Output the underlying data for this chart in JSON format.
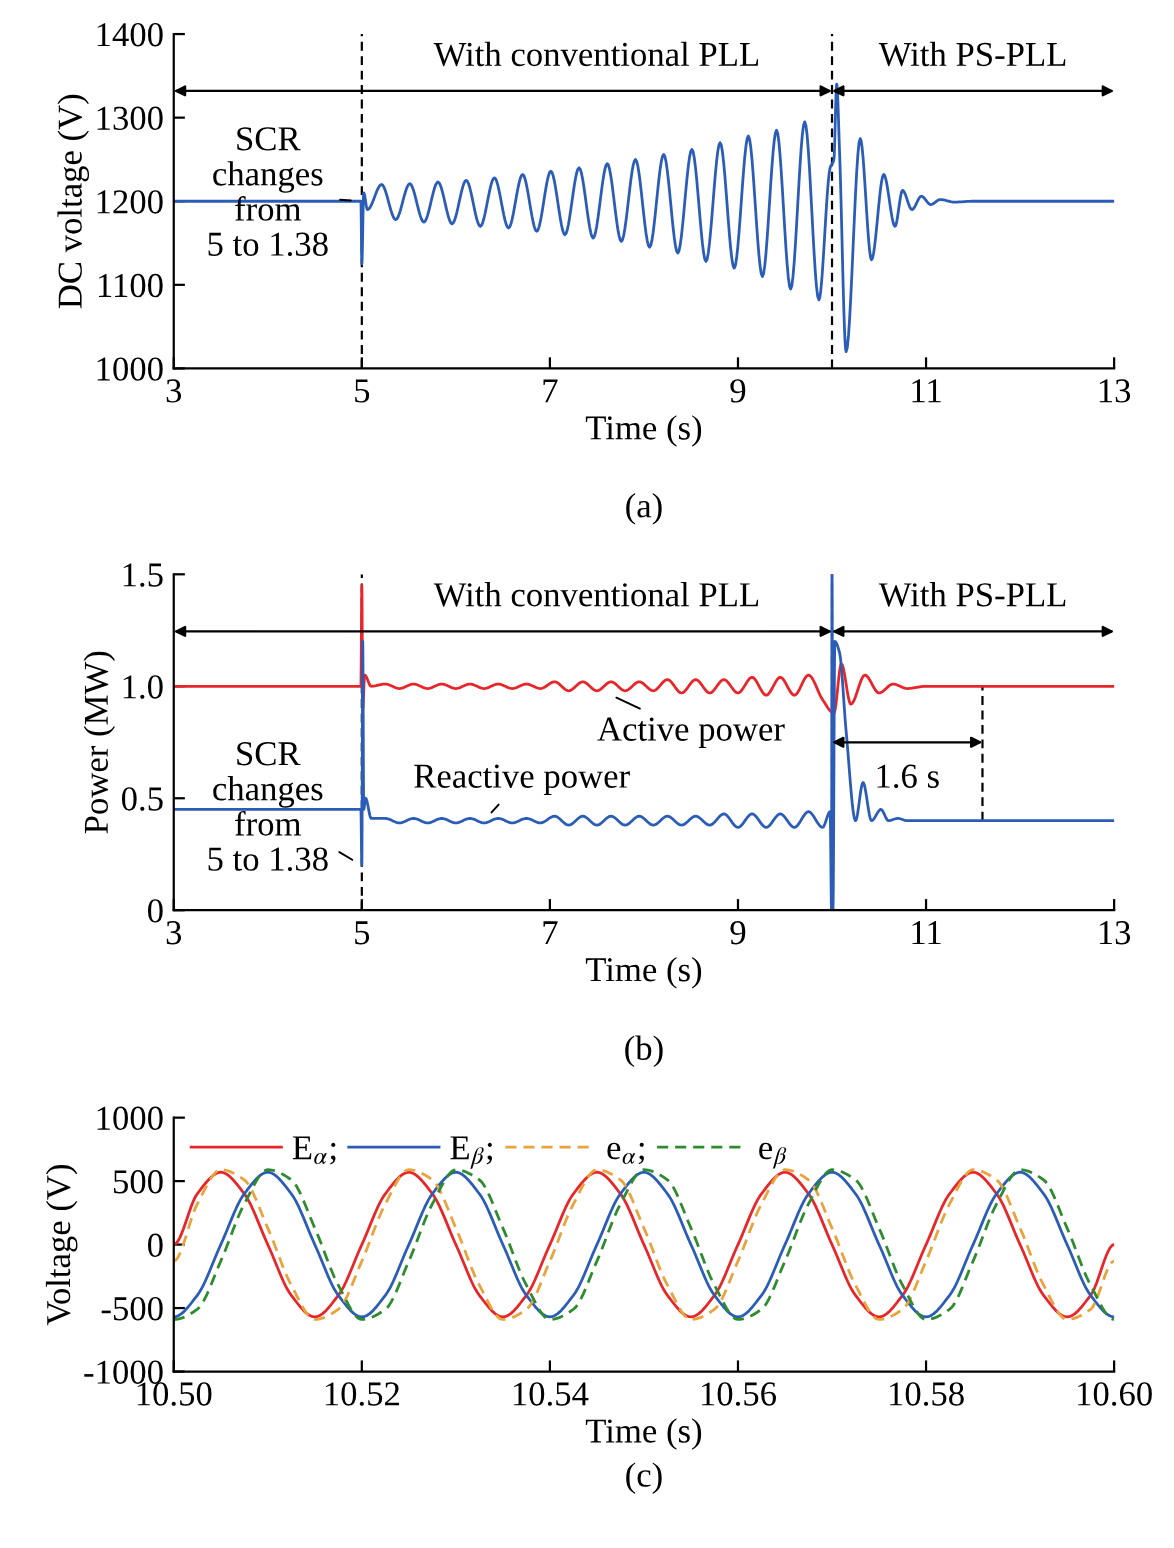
{
  "chart_data": [
    {
      "type": "line",
      "xlabel": "Time (s)",
      "ylabel": "DC voltage (V)",
      "xlim": [
        3,
        13
      ],
      "ylim": [
        1000,
        1400
      ],
      "xticks": [
        3,
        5,
        7,
        9,
        11,
        13
      ],
      "yticks": [
        1000,
        1100,
        1200,
        1300,
        1400
      ],
      "series": [
        {
          "color": "#2a5cb8",
          "x": [
            3,
            4.99,
            5,
            5.02,
            5.06,
            5.21,
            5.36,
            5.51,
            5.66,
            5.81,
            5.96,
            6.11,
            6.26,
            6.41,
            6.56,
            6.71,
            6.86,
            7.01,
            7.16,
            7.31,
            7.46,
            7.61,
            7.76,
            7.91,
            8.06,
            8.21,
            8.36,
            8.51,
            8.66,
            8.81,
            8.96,
            9.11,
            9.26,
            9.41,
            9.56,
            9.71,
            9.86,
            9.98,
            10.02,
            10.05,
            10.08,
            10.15,
            10.3,
            10.42,
            10.55,
            10.67,
            10.75,
            10.85,
            10.95,
            11.05,
            11.15,
            11.3,
            11.5,
            13
          ],
          "values": [
            1200,
            1200,
            1125,
            1210,
            1190,
            1220,
            1178,
            1221,
            1175,
            1223,
            1173,
            1225,
            1170,
            1228,
            1168,
            1232,
            1164,
            1236,
            1160,
            1240,
            1156,
            1245,
            1152,
            1250,
            1145,
            1256,
            1138,
            1262,
            1128,
            1270,
            1120,
            1278,
            1110,
            1285,
            1095,
            1295,
            1082,
            1240,
            1250,
            1340,
            1260,
            1020,
            1275,
            1130,
            1232,
            1170,
            1213,
            1190,
            1206,
            1196,
            1202,
            1199,
            1200,
            1200
          ]
        }
      ],
      "ref_lines": [
        {
          "axis": "x",
          "value": 5,
          "color": "#000000",
          "line_style": "dashed"
        },
        {
          "axis": "x",
          "value": 10,
          "color": "#000000",
          "line_style": "dashed"
        }
      ],
      "annotations": [
        "With conventional PLL",
        "With PS-PLL",
        {
          "text": "SCR\nchanges\nfrom\n5 to 1.38",
          "x": 5,
          "y": 1200
        },
        "(a)"
      ]
    },
    {
      "type": "line",
      "xlabel": "Time (s)",
      "ylabel": "Power (MW)",
      "xlim": [
        3,
        13
      ],
      "ylim": [
        0,
        1.5
      ],
      "xticks": [
        3,
        5,
        7,
        9,
        11,
        13
      ],
      "yticks": [
        0,
        0.5,
        {
          "value": 1.0,
          "label": "1.0"
        },
        1.5
      ],
      "series": [
        {
          "color": "#e8262a",
          "x": [
            3,
            4.99,
            5,
            5.01,
            5.03,
            5.1,
            5.25,
            5.4,
            5.55,
            5.7,
            5.85,
            6,
            6.15,
            6.3,
            6.45,
            6.6,
            6.75,
            6.9,
            7.05,
            7.2,
            7.35,
            7.5,
            7.65,
            7.8,
            7.95,
            8.1,
            8.25,
            8.4,
            8.55,
            8.7,
            8.85,
            9,
            9.15,
            9.3,
            9.45,
            9.6,
            9.75,
            9.9,
            10.02,
            10.1,
            10.2,
            10.35,
            10.5,
            10.65,
            10.8,
            11,
            13
          ],
          "values": [
            1,
            1,
            1.45,
            0.9,
            1.05,
            1.0,
            1.01,
            0.99,
            1.01,
            0.99,
            1.01,
            0.99,
            1.01,
            0.99,
            1.01,
            0.99,
            1.01,
            0.99,
            1.02,
            0.98,
            1.02,
            0.98,
            1.02,
            0.98,
            1.02,
            0.98,
            1.03,
            0.97,
            1.03,
            0.97,
            1.03,
            0.97,
            1.04,
            0.96,
            1.04,
            0.96,
            1.05,
            0.94,
            0.88,
            1.1,
            0.92,
            1.05,
            0.97,
            1.01,
            0.99,
            1,
            1
          ]
        },
        {
          "color": "#2a5cb8",
          "x": [
            3,
            4.99,
            5,
            5.01,
            5.02,
            5.04,
            5.1,
            5.25,
            5.4,
            5.55,
            5.7,
            5.85,
            6,
            6.15,
            6.3,
            6.45,
            6.6,
            6.75,
            6.9,
            7.05,
            7.2,
            7.35,
            7.5,
            7.65,
            7.8,
            7.95,
            8.1,
            8.25,
            8.4,
            8.55,
            8.7,
            8.85,
            9,
            9.15,
            9.3,
            9.45,
            9.6,
            9.75,
            9.9,
            9.98,
            9.995,
            10,
            10.01,
            10.03,
            10.08,
            10.15,
            10.25,
            10.33,
            10.42,
            10.52,
            10.6,
            10.7,
            10.8,
            13
          ],
          "values": [
            0.45,
            0.45,
            0.2,
            1.2,
            0.45,
            0.5,
            0.41,
            0.41,
            0.39,
            0.41,
            0.39,
            0.41,
            0.39,
            0.41,
            0.39,
            0.41,
            0.39,
            0.41,
            0.39,
            0.42,
            0.38,
            0.42,
            0.38,
            0.42,
            0.38,
            0.42,
            0.38,
            0.42,
            0.38,
            0.42,
            0.38,
            0.43,
            0.37,
            0.43,
            0.37,
            0.43,
            0.37,
            0.44,
            0.37,
            0.44,
            0,
            1.5,
            0,
            1.2,
            1.15,
            0.8,
            0.4,
            0.57,
            0.4,
            0.45,
            0.4,
            0.41,
            0.4,
            0.4
          ]
        }
      ],
      "ref_lines": [
        {
          "axis": "x",
          "value": 5,
          "color": "#000000",
          "line_style": "dashed"
        },
        {
          "axis": "x",
          "value": 10,
          "color": "#000000",
          "line_style": "dashed"
        },
        {
          "axis": "x",
          "value": 11.6,
          "color": "#000000",
          "line_style": "dashed"
        }
      ],
      "annotations": [
        "With conventional PLL",
        "With PS-PLL",
        "1.6 s",
        {
          "text": "SCR\nchanges\nfrom\n5 to 1.38",
          "x": 5,
          "y": 0.2
        },
        {
          "text": "Active power",
          "x": 7.6,
          "y": 0.97
        },
        {
          "text": "Reactive power",
          "x": 6.3,
          "y": 0.4
        },
        "(b)"
      ]
    },
    {
      "type": "line",
      "xlabel": "Time (s)",
      "ylabel": "Voltage (V)",
      "xlim": [
        10.5,
        10.6
      ],
      "ylim": [
        -1000,
        1000
      ],
      "xticks": [
        {
          "value": 10.5,
          "label": "10.50"
        },
        {
          "value": 10.52,
          "label": "10.52"
        },
        {
          "value": 10.54,
          "label": "10.54"
        },
        {
          "value": 10.56,
          "label": "10.56"
        },
        {
          "value": 10.58,
          "label": "10.58"
        },
        {
          "value": 10.6,
          "label": "10.60"
        }
      ],
      "yticks": [
        {
          "value": -1000,
          "label": "-1000"
        },
        {
          "value": -500,
          "label": "-500"
        },
        0,
        500,
        1000
      ],
      "legend": "top left",
      "x": [
        10.5,
        10.5025,
        10.505,
        10.5075,
        10.51,
        10.5125,
        10.515,
        10.5175,
        10.52,
        10.5225,
        10.525,
        10.5275,
        10.53,
        10.5325,
        10.535,
        10.5375,
        10.54,
        10.5425,
        10.545,
        10.5475,
        10.55,
        10.5525,
        10.555,
        10.5575,
        10.56,
        10.5625,
        10.565,
        10.5675,
        10.57,
        10.5725,
        10.575,
        10.5775,
        10.58,
        10.5825,
        10.585,
        10.5875,
        10.59,
        10.5925,
        10.595,
        10.5975,
        10.6
      ],
      "series": [
        {
          "name": "E$_{α}$;",
          "color": "#e8262a",
          "line_style": "solid",
          "values": [
            0,
            400,
            570,
            400,
            0,
            -400,
            -570,
            -400,
            0,
            400,
            570,
            400,
            0,
            -400,
            -570,
            -400,
            0,
            400,
            570,
            400,
            0,
            -400,
            -570,
            -400,
            0,
            400,
            570,
            400,
            0,
            -400,
            -570,
            -400,
            0,
            400,
            570,
            400,
            0,
            -400,
            -570,
            -400,
            0
          ]
        },
        {
          "name": "E$_{β}$;",
          "color": "#2a5cb8",
          "line_style": "solid",
          "values": [
            -570,
            -400,
            0,
            400,
            570,
            400,
            0,
            -400,
            -570,
            -400,
            0,
            400,
            570,
            400,
            0,
            -400,
            -570,
            -400,
            0,
            400,
            570,
            400,
            0,
            -400,
            -570,
            -400,
            0,
            400,
            570,
            400,
            0,
            -400,
            -570,
            -400,
            0,
            400,
            570,
            400,
            0,
            -400,
            -570
          ]
        },
        {
          "name": "e$_{α}$;",
          "color": "#e8a33c",
          "line_style": "dashed",
          "values": [
            -130,
            320,
            590,
            510,
            130,
            -320,
            -590,
            -510,
            -130,
            320,
            590,
            510,
            130,
            -320,
            -590,
            -510,
            -130,
            320,
            590,
            510,
            130,
            -320,
            -590,
            -510,
            -130,
            320,
            590,
            510,
            130,
            -320,
            -590,
            -510,
            -130,
            320,
            590,
            510,
            130,
            -320,
            -590,
            -510,
            -130
          ]
        },
        {
          "name": "e$_{β}$",
          "color": "#2e8b2e",
          "line_style": "dashed",
          "values": [
            -590,
            -510,
            -130,
            320,
            590,
            510,
            130,
            -320,
            -590,
            -510,
            -130,
            320,
            590,
            510,
            130,
            -320,
            -590,
            -510,
            -130,
            320,
            590,
            510,
            130,
            -320,
            -590,
            -510,
            -130,
            320,
            590,
            510,
            130,
            -320,
            -590,
            -510,
            -130,
            320,
            590,
            510,
            130,
            -320,
            -590
          ]
        }
      ],
      "annotations": [
        "(c)"
      ]
    }
  ]
}
